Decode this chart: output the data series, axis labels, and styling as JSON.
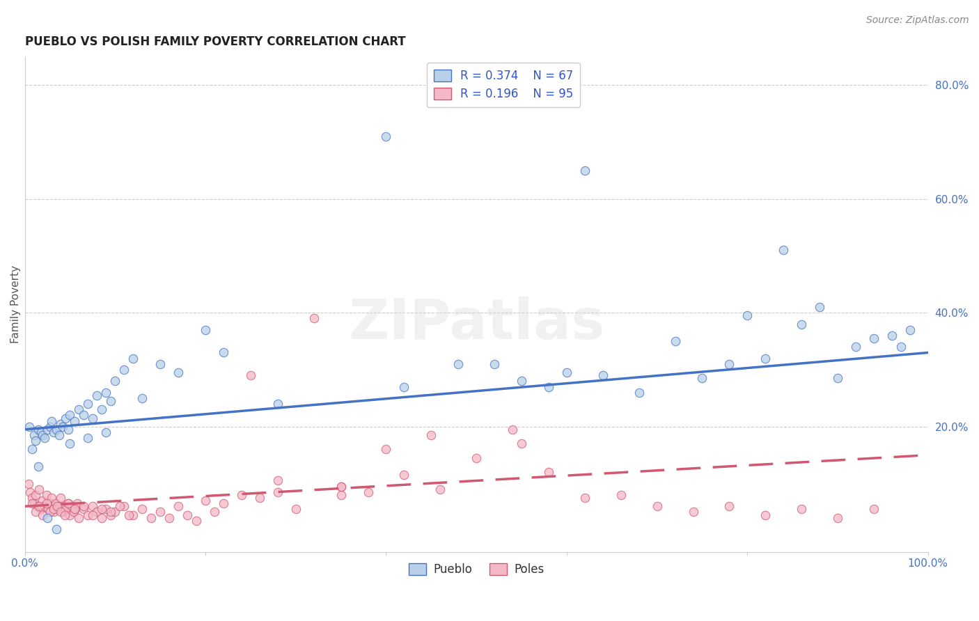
{
  "title": "PUEBLO VS POLISH FAMILY POVERTY CORRELATION CHART",
  "source": "Source: ZipAtlas.com",
  "ylabel": "Family Poverty",
  "xlim": [
    0.0,
    1.0
  ],
  "ylim": [
    -0.02,
    0.85
  ],
  "xtick_positions": [
    0.0,
    0.2,
    0.4,
    0.6,
    0.8,
    1.0
  ],
  "xtick_labels": [
    "0.0%",
    "",
    "",
    "",
    "",
    "100.0%"
  ],
  "ytick_positions": [
    0.2,
    0.4,
    0.6,
    0.8
  ],
  "ytick_labels": [
    "20.0%",
    "40.0%",
    "60.0%",
    "80.0%"
  ],
  "legend_entries": [
    {
      "label": "Pueblo",
      "R": "0.374",
      "N": "67",
      "face_color": "#b8d0e8",
      "edge_color": "#4472c4",
      "line_color": "#4472c4"
    },
    {
      "label": "Poles",
      "R": "0.196",
      "N": "95",
      "face_color": "#f4b8c8",
      "edge_color": "#d05870",
      "line_color": "#d05870"
    }
  ],
  "pueblo_line_x": [
    0.0,
    1.0
  ],
  "pueblo_line_y": [
    0.195,
    0.33
  ],
  "poles_line_x": [
    0.0,
    1.0
  ],
  "poles_line_y": [
    0.06,
    0.15
  ],
  "background_color": "#ffffff",
  "grid_color": "#cccccc",
  "watermark": "ZIPatlas",
  "title_fontsize": 12,
  "axis_label_fontsize": 11,
  "tick_fontsize": 11,
  "legend_fontsize": 12,
  "source_fontsize": 10,
  "marker_size": 80,
  "pueblo_x": [
    0.005,
    0.01,
    0.012,
    0.015,
    0.018,
    0.02,
    0.022,
    0.025,
    0.028,
    0.03,
    0.032,
    0.035,
    0.038,
    0.04,
    0.042,
    0.045,
    0.048,
    0.05,
    0.055,
    0.06,
    0.065,
    0.07,
    0.075,
    0.08,
    0.085,
    0.09,
    0.095,
    0.1,
    0.11,
    0.12,
    0.13,
    0.15,
    0.17,
    0.2,
    0.22,
    0.28,
    0.4,
    0.42,
    0.48,
    0.52,
    0.55,
    0.58,
    0.6,
    0.62,
    0.64,
    0.68,
    0.72,
    0.75,
    0.78,
    0.8,
    0.82,
    0.84,
    0.86,
    0.88,
    0.9,
    0.92,
    0.94,
    0.96,
    0.97,
    0.98,
    0.008,
    0.015,
    0.025,
    0.035,
    0.05,
    0.07,
    0.09
  ],
  "pueblo_y": [
    0.2,
    0.185,
    0.175,
    0.195,
    0.19,
    0.185,
    0.18,
    0.195,
    0.2,
    0.21,
    0.19,
    0.195,
    0.185,
    0.205,
    0.2,
    0.215,
    0.195,
    0.22,
    0.21,
    0.23,
    0.22,
    0.24,
    0.215,
    0.255,
    0.23,
    0.26,
    0.245,
    0.28,
    0.3,
    0.32,
    0.25,
    0.31,
    0.295,
    0.37,
    0.33,
    0.24,
    0.71,
    0.27,
    0.31,
    0.31,
    0.28,
    0.27,
    0.295,
    0.65,
    0.29,
    0.26,
    0.35,
    0.285,
    0.31,
    0.395,
    0.32,
    0.51,
    0.38,
    0.41,
    0.285,
    0.34,
    0.355,
    0.36,
    0.34,
    0.37,
    0.16,
    0.13,
    0.04,
    0.02,
    0.17,
    0.18,
    0.19
  ],
  "poles_x": [
    0.004,
    0.006,
    0.008,
    0.01,
    0.012,
    0.014,
    0.016,
    0.018,
    0.02,
    0.022,
    0.024,
    0.026,
    0.028,
    0.03,
    0.032,
    0.034,
    0.036,
    0.038,
    0.04,
    0.042,
    0.044,
    0.046,
    0.048,
    0.05,
    0.052,
    0.054,
    0.056,
    0.058,
    0.06,
    0.065,
    0.07,
    0.075,
    0.08,
    0.085,
    0.09,
    0.095,
    0.1,
    0.11,
    0.12,
    0.13,
    0.14,
    0.15,
    0.16,
    0.17,
    0.18,
    0.19,
    0.2,
    0.21,
    0.22,
    0.24,
    0.26,
    0.28,
    0.3,
    0.32,
    0.35,
    0.38,
    0.42,
    0.46,
    0.5,
    0.54,
    0.58,
    0.62,
    0.66,
    0.7,
    0.74,
    0.78,
    0.82,
    0.86,
    0.9,
    0.94,
    0.008,
    0.012,
    0.016,
    0.02,
    0.024,
    0.028,
    0.032,
    0.036,
    0.04,
    0.044,
    0.048,
    0.055,
    0.065,
    0.075,
    0.085,
    0.095,
    0.105,
    0.115,
    0.25,
    0.35,
    0.45,
    0.55,
    0.35,
    0.28,
    0.4
  ],
  "poles_y": [
    0.1,
    0.085,
    0.075,
    0.065,
    0.08,
    0.06,
    0.09,
    0.055,
    0.07,
    0.06,
    0.08,
    0.055,
    0.065,
    0.075,
    0.05,
    0.065,
    0.055,
    0.06,
    0.075,
    0.05,
    0.06,
    0.055,
    0.065,
    0.045,
    0.06,
    0.05,
    0.055,
    0.065,
    0.04,
    0.055,
    0.045,
    0.06,
    0.05,
    0.04,
    0.055,
    0.045,
    0.05,
    0.06,
    0.045,
    0.055,
    0.04,
    0.05,
    0.04,
    0.06,
    0.045,
    0.035,
    0.07,
    0.05,
    0.065,
    0.08,
    0.075,
    0.085,
    0.055,
    0.39,
    0.095,
    0.085,
    0.115,
    0.09,
    0.145,
    0.195,
    0.12,
    0.075,
    0.08,
    0.06,
    0.05,
    0.06,
    0.045,
    0.055,
    0.04,
    0.055,
    0.065,
    0.05,
    0.06,
    0.045,
    0.065,
    0.05,
    0.055,
    0.06,
    0.05,
    0.045,
    0.065,
    0.055,
    0.06,
    0.045,
    0.055,
    0.05,
    0.06,
    0.045,
    0.29,
    0.08,
    0.185,
    0.17,
    0.095,
    0.105,
    0.16
  ]
}
